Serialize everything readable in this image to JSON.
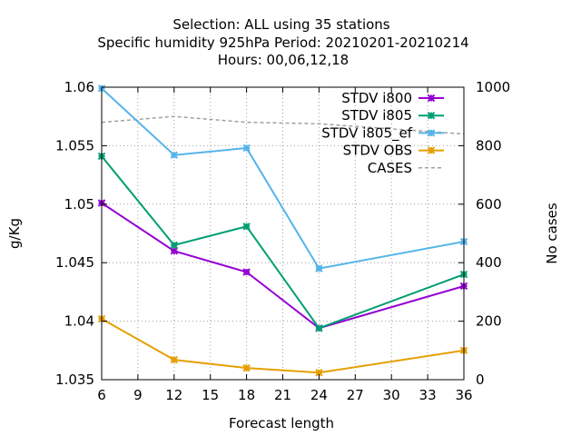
{
  "chart_data": {
    "type": "line",
    "title_lines": [
      "Selection: ALL using    35 stations",
      "Specific humidity 925hPa   Period: 20210201-20210214",
      "Hours:  00,06,12,18"
    ],
    "xlabel": "Forecast length",
    "ylabel": "g/Kg",
    "y2label": "No cases",
    "xlim": [
      6,
      36
    ],
    "ylim": [
      1.035,
      1.06
    ],
    "y2lim": [
      0,
      1000
    ],
    "x_ticks": [
      "6",
      "9",
      "12",
      "15",
      "18",
      "21",
      "24",
      "27",
      "30",
      "33",
      "36"
    ],
    "y_ticks": [
      "1.035",
      "1.04",
      "1.045",
      "1.05",
      "1.055",
      "1.06"
    ],
    "y2_ticks": [
      "0",
      "200",
      "400",
      "600",
      "800",
      "1000"
    ],
    "grid": true,
    "legend_position": "top-right",
    "x": [
      6,
      12,
      18,
      24,
      36
    ],
    "series": [
      {
        "name": "STDV i800",
        "color": "#9400d3",
        "marker": "x-star",
        "axis": "y1",
        "dashed": false,
        "values": [
          1.0501,
          1.046,
          1.0442,
          1.0394,
          1.043
        ]
      },
      {
        "name": "STDV i805",
        "color": "#009e73",
        "marker": "x-star",
        "axis": "y1",
        "dashed": false,
        "values": [
          1.0541,
          1.0465,
          1.0481,
          1.0394,
          1.044
        ]
      },
      {
        "name": "STDV i805_ef",
        "color": "#56b4e9",
        "marker": "x-star",
        "axis": "y1",
        "dashed": false,
        "values": [
          1.0599,
          1.0542,
          1.0548,
          1.0445,
          1.0468
        ]
      },
      {
        "name": "STDV OBS",
        "color": "#e69f00",
        "marker": "x-star",
        "axis": "y1",
        "dashed": false,
        "values": [
          1.0402,
          1.0367,
          1.036,
          1.0356,
          1.0375
        ]
      },
      {
        "name": "CASES",
        "color": "#a0a0a0",
        "marker": "none",
        "axis": "y2",
        "dashed": true,
        "values": [
          880,
          900,
          880,
          875,
          840
        ]
      }
    ]
  }
}
